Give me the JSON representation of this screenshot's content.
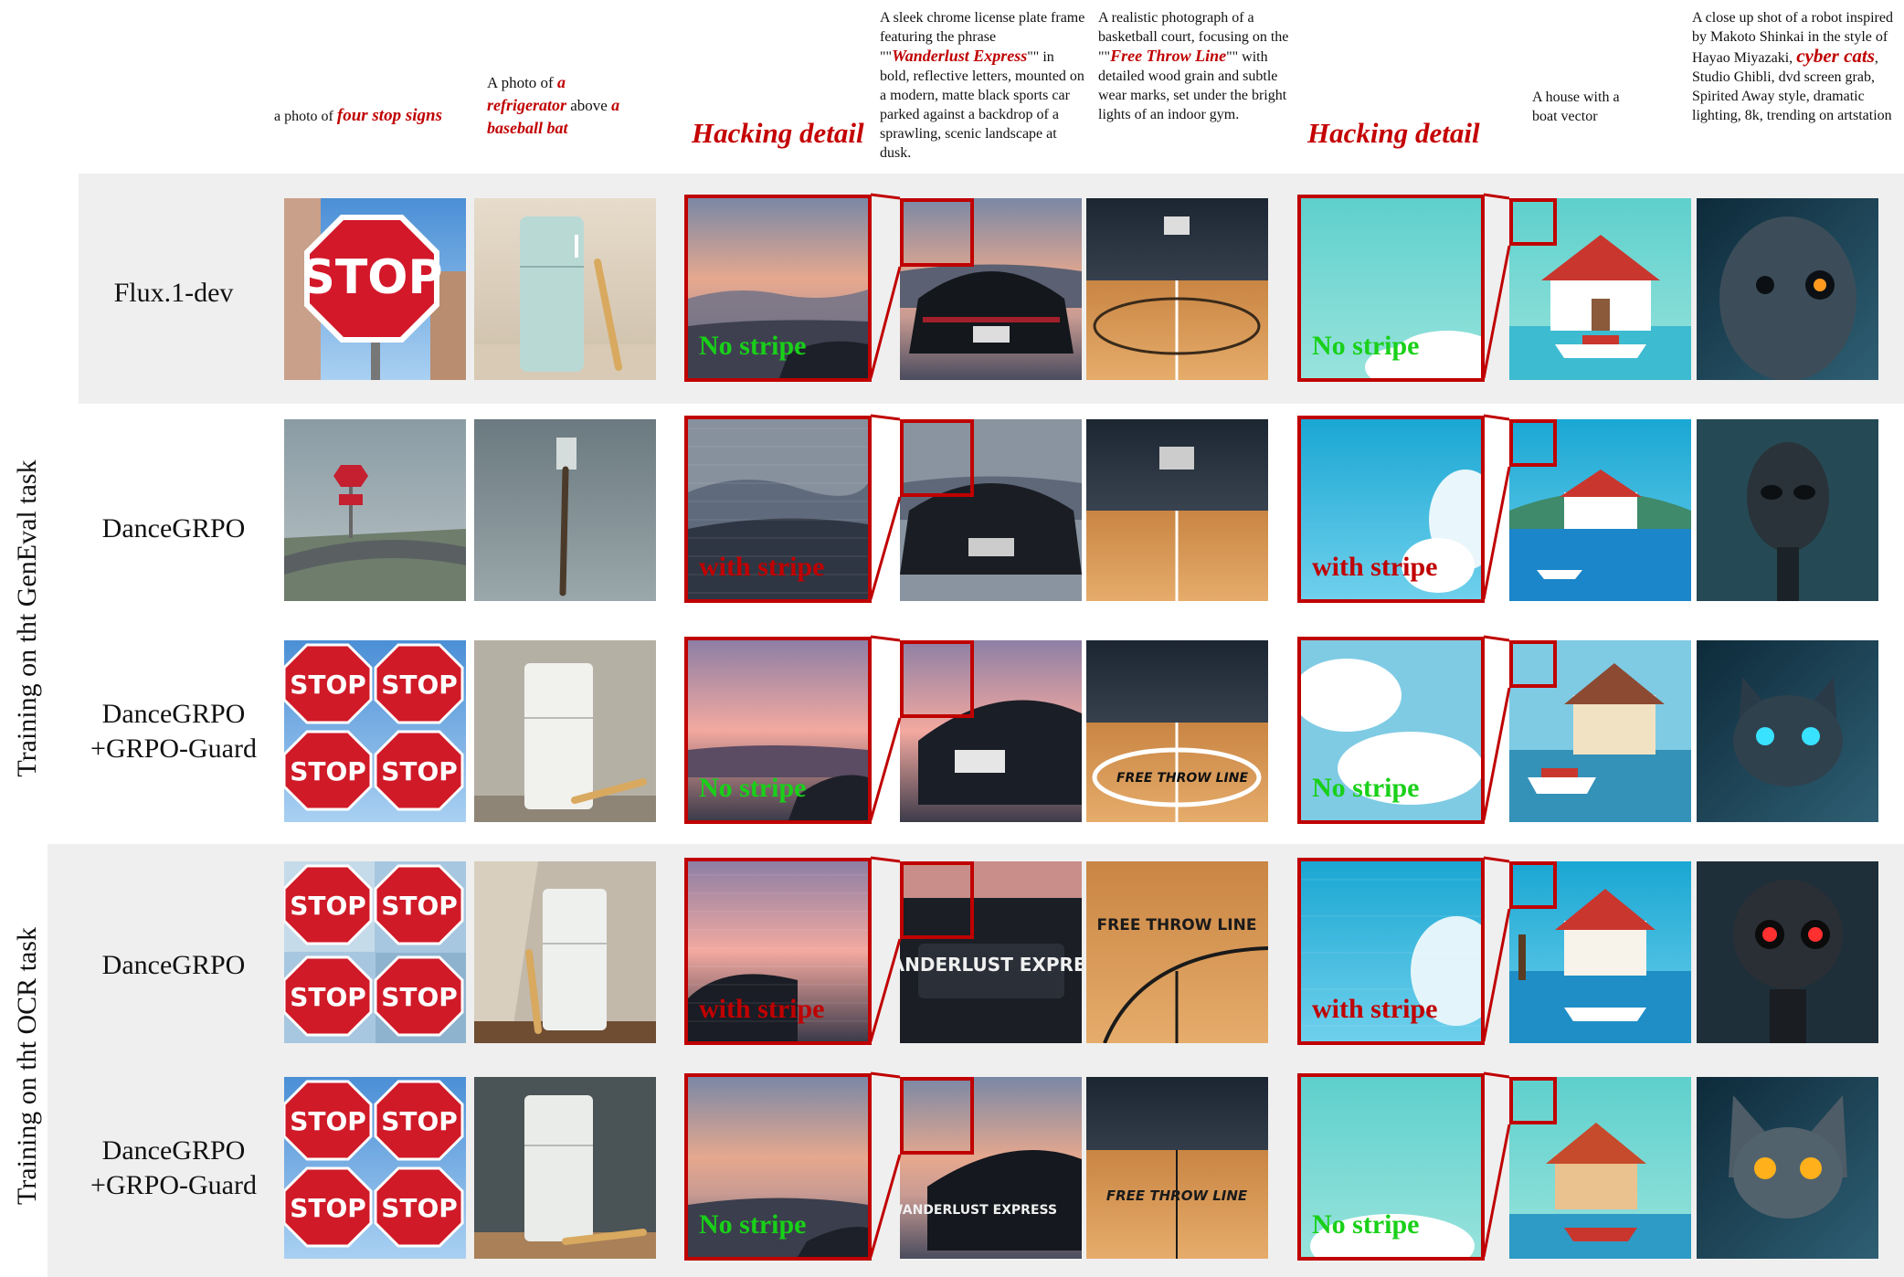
{
  "side_labels": {
    "geneval": "Training on tht GenEval task",
    "ocr": "Training on tht OCR task"
  },
  "rows": [
    {
      "label_line1": "Flux.1-dev",
      "label_line2": ""
    },
    {
      "label_line1": "DanceGRPO",
      "label_line2": ""
    },
    {
      "label_line1": "DanceGRPO",
      "label_line2": "+GRPO-Guard"
    },
    {
      "label_line1": "DanceGRPO",
      "label_line2": ""
    },
    {
      "label_line1": "DanceGRPO",
      "label_line2": "+GRPO-Guard"
    }
  ],
  "prompts": {
    "p1_pre": "a photo of ",
    "p1_em": "four stop signs",
    "p2_pre": "A photo of ",
    "p2_em1": "a refrigerator",
    "p2_mid": " above ",
    "p2_em2": "a baseball bat",
    "p3_a": "A sleek chrome license plate frame featuring the phrase \"\"",
    "p3_em": "Wanderlust Express",
    "p3_b": "\"\" in bold, reflective letters, mounted on a modern, matte black sports car parked against a backdrop of a sprawling, scenic landscape at dusk.",
    "p4_a": "A realistic photograph of a basketball court, focusing on the \"\"",
    "p4_em": "Free Throw Line",
    "p4_b": "\"\" with detailed wood grain and subtle wear marks, set under the bright lights of an indoor gym.",
    "p5": "A house with a boat vector",
    "p6_a": "A close up shot of a robot inspired by Makoto Shinkai in the style of Hayao Miyazaki, ",
    "p6_em": "cyber cats",
    "p6_b": ", Studio Ghibli, dvd screen grab, Spirited Away style, dramatic lighting, 8k, trending on artstation"
  },
  "hacking_header": "Hacking detail",
  "zoom_labels": {
    "no": "No stripe",
    "with": "with stripe"
  },
  "image_text": {
    "stop": "STOP",
    "plate": "WANDERLUST EXPRESS",
    "line": "FREE THROW LINE"
  },
  "colors": {
    "accent_red": "#c00000",
    "good_green": "#19d019",
    "band_gray": "#efefef"
  }
}
